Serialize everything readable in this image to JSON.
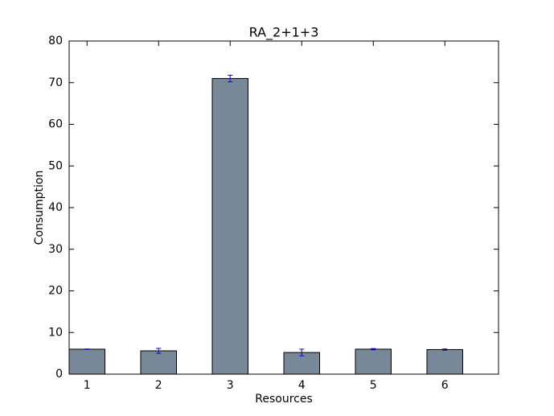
{
  "chart_data": {
    "type": "bar",
    "title": "RA_2+1+3",
    "x_label": "Resources",
    "y_label": "Consumption",
    "categories": [
      "1",
      "2",
      "3",
      "4",
      "5",
      "6"
    ],
    "values": [
      6.0,
      5.6,
      71.0,
      5.2,
      6.0,
      5.9
    ],
    "errors": [
      0.05,
      0.6,
      0.8,
      0.8,
      0.15,
      0.15
    ],
    "color": "#778899",
    "error_color": "#0000ff",
    "ylim": [
      0,
      80
    ],
    "yticks": [
      0,
      10,
      20,
      30,
      40,
      50,
      60,
      70,
      80
    ],
    "grid": false
  }
}
